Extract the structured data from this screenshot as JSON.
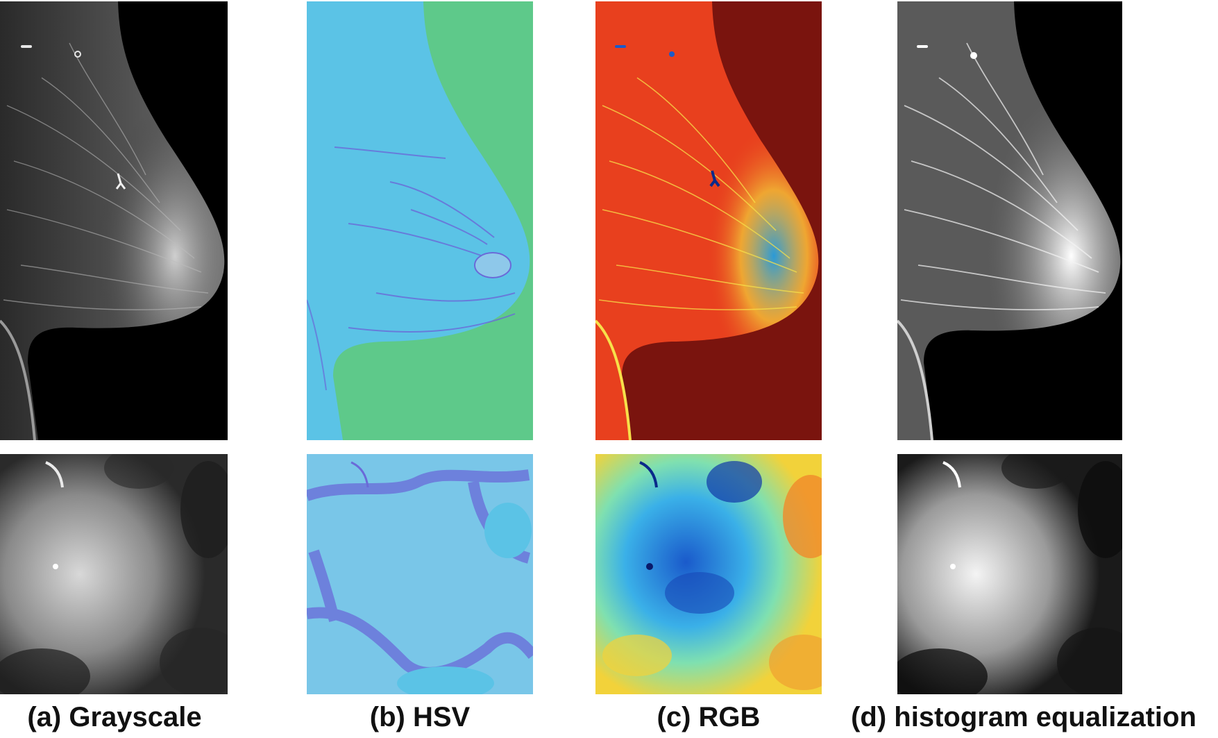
{
  "captions": {
    "a": "(a) Grayscale",
    "b": "(b) HSV",
    "c": "(c) RGB",
    "d": "(d) histogram equalization"
  },
  "panels": {
    "grayscale": {
      "background": "#000000",
      "tissue": "#4a4a4a",
      "highlight": "#d8d8d8"
    },
    "hsv": {
      "background": "#5ec98a",
      "tissue": "#5bc3e6",
      "accent": "#6a6ad8",
      "light": "#8ec8ea"
    },
    "rgb": {
      "background": "#7a140e",
      "tissue": "#e8401e",
      "accent": "#f2d23a",
      "cool": "#1a5acb"
    },
    "histeq": {
      "background": "#000000",
      "tissue": "#8a8a8a",
      "highlight": "#f4f4f4"
    }
  }
}
